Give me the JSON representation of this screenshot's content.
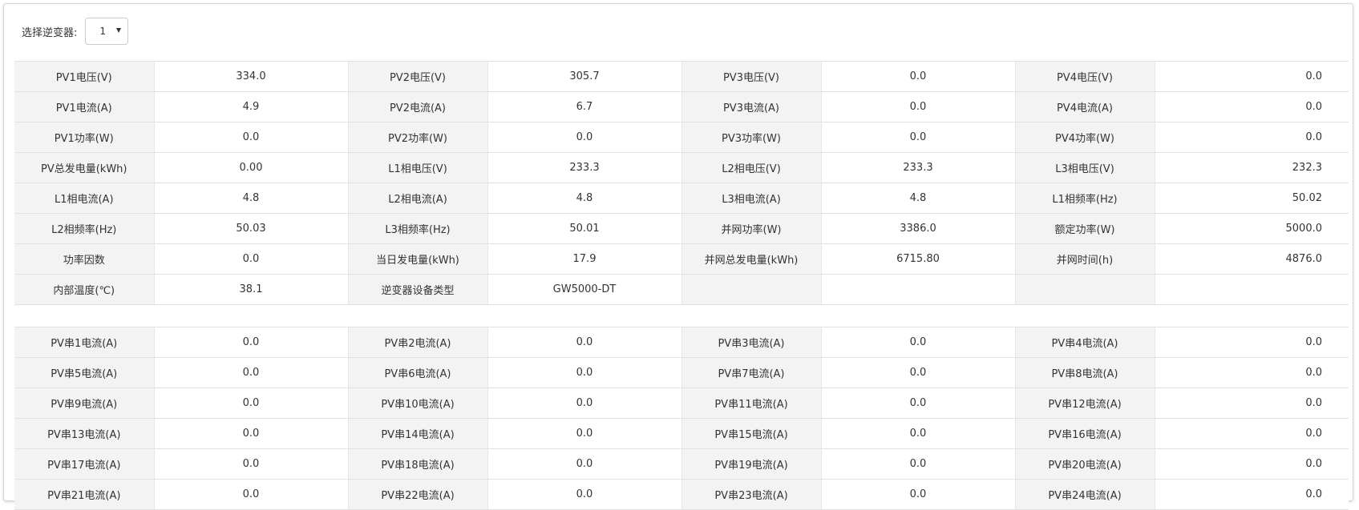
{
  "selector": {
    "label": "选择逆变器:",
    "selected": "1"
  },
  "main_table": [
    [
      {
        "label": "PV1电压(V)",
        "value": "334.0"
      },
      {
        "label": "PV2电压(V)",
        "value": "305.7"
      },
      {
        "label": "PV3电压(V)",
        "value": "0.0"
      },
      {
        "label": "PV4电压(V)",
        "value": "0.0"
      }
    ],
    [
      {
        "label": "PV1电流(A)",
        "value": "4.9"
      },
      {
        "label": "PV2电流(A)",
        "value": "6.7"
      },
      {
        "label": "PV3电流(A)",
        "value": "0.0"
      },
      {
        "label": "PV4电流(A)",
        "value": "0.0"
      }
    ],
    [
      {
        "label": "PV1功率(W)",
        "value": "0.0"
      },
      {
        "label": "PV2功率(W)",
        "value": "0.0"
      },
      {
        "label": "PV3功率(W)",
        "value": "0.0"
      },
      {
        "label": "PV4功率(W)",
        "value": "0.0"
      }
    ],
    [
      {
        "label": "PV总发电量(kWh)",
        "value": "0.00"
      },
      {
        "label": "L1相电压(V)",
        "value": "233.3"
      },
      {
        "label": "L2相电压(V)",
        "value": "233.3"
      },
      {
        "label": "L3相电压(V)",
        "value": "232.3"
      }
    ],
    [
      {
        "label": "L1相电流(A)",
        "value": "4.8"
      },
      {
        "label": "L2相电流(A)",
        "value": "4.8"
      },
      {
        "label": "L3相电流(A)",
        "value": "4.8"
      },
      {
        "label": "L1相频率(Hz)",
        "value": "50.02"
      }
    ],
    [
      {
        "label": "L2相频率(Hz)",
        "value": "50.03"
      },
      {
        "label": "L3相频率(Hz)",
        "value": "50.01"
      },
      {
        "label": "并网功率(W)",
        "value": "3386.0"
      },
      {
        "label": "额定功率(W)",
        "value": "5000.0"
      }
    ],
    [
      {
        "label": "功率因数",
        "value": "0.0"
      },
      {
        "label": "当日发电量(kWh)",
        "value": "17.9"
      },
      {
        "label": "并网总发电量(kWh)",
        "value": "6715.80"
      },
      {
        "label": "并网时间(h)",
        "value": "4876.0"
      }
    ],
    [
      {
        "label": "内部温度(℃)",
        "value": "38.1"
      },
      {
        "label": "逆变器设备类型",
        "value": "GW5000-DT"
      },
      {
        "label": "",
        "value": ""
      },
      {
        "label": "",
        "value": ""
      }
    ]
  ],
  "string_table": [
    [
      {
        "label": "PV串1电流(A)",
        "value": "0.0"
      },
      {
        "label": "PV串2电流(A)",
        "value": "0.0"
      },
      {
        "label": "PV串3电流(A)",
        "value": "0.0"
      },
      {
        "label": "PV串4电流(A)",
        "value": "0.0"
      }
    ],
    [
      {
        "label": "PV串5电流(A)",
        "value": "0.0"
      },
      {
        "label": "PV串6电流(A)",
        "value": "0.0"
      },
      {
        "label": "PV串7电流(A)",
        "value": "0.0"
      },
      {
        "label": "PV串8电流(A)",
        "value": "0.0"
      }
    ],
    [
      {
        "label": "PV串9电流(A)",
        "value": "0.0"
      },
      {
        "label": "PV串10电流(A)",
        "value": "0.0"
      },
      {
        "label": "PV串11电流(A)",
        "value": "0.0"
      },
      {
        "label": "PV串12电流(A)",
        "value": "0.0"
      }
    ],
    [
      {
        "label": "PV串13电流(A)",
        "value": "0.0"
      },
      {
        "label": "PV串14电流(A)",
        "value": "0.0"
      },
      {
        "label": "PV串15电流(A)",
        "value": "0.0"
      },
      {
        "label": "PV串16电流(A)",
        "value": "0.0"
      }
    ],
    [
      {
        "label": "PV串17电流(A)",
        "value": "0.0"
      },
      {
        "label": "PV串18电流(A)",
        "value": "0.0"
      },
      {
        "label": "PV串19电流(A)",
        "value": "0.0"
      },
      {
        "label": "PV串20电流(A)",
        "value": "0.0"
      }
    ],
    [
      {
        "label": "PV串21电流(A)",
        "value": "0.0"
      },
      {
        "label": "PV串22电流(A)",
        "value": "0.0"
      },
      {
        "label": "PV串23电流(A)",
        "value": "0.0"
      },
      {
        "label": "PV串24电流(A)",
        "value": "0.0"
      }
    ]
  ]
}
